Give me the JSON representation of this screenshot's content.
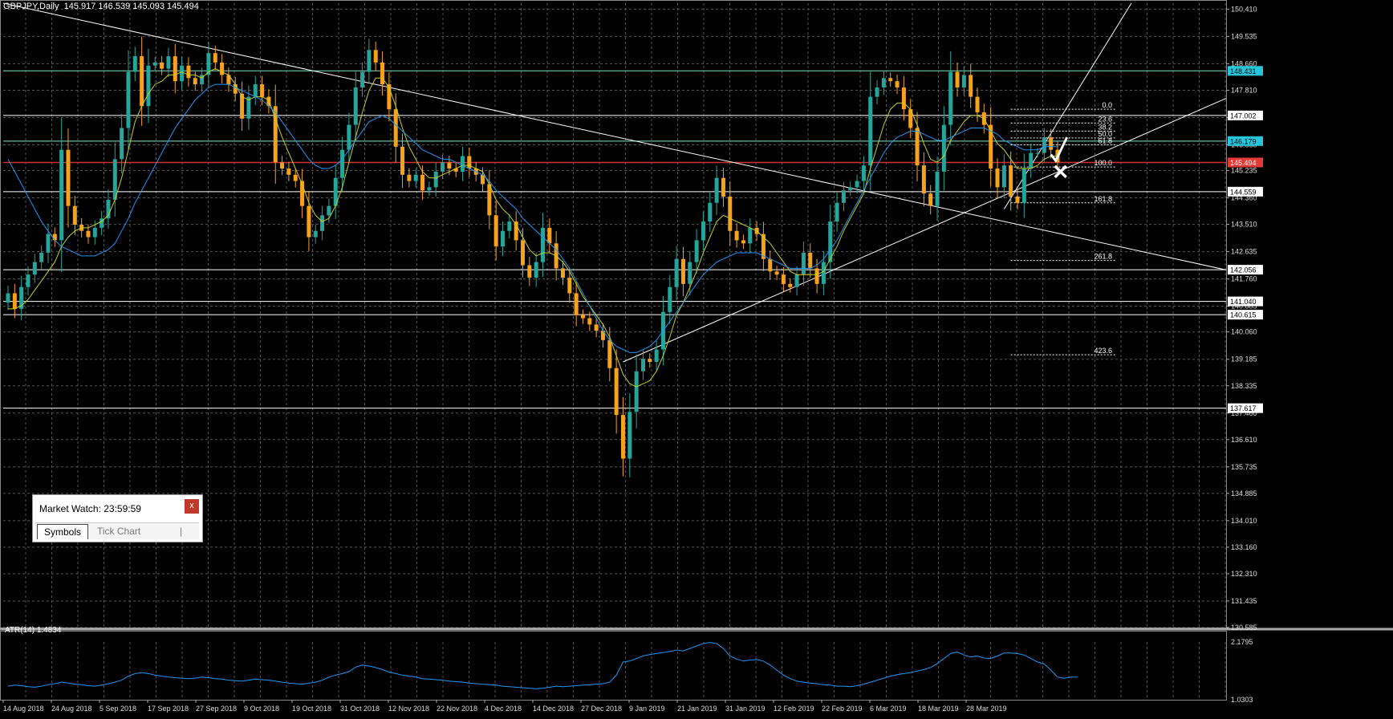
{
  "header": {
    "title": "GBPJPY,Daily  145.917 146.539 145.093 145.494"
  },
  "atr_header": {
    "label": "ATR(14) 1.4834"
  },
  "market_watch": {
    "title": "Market Watch: 23:59:59",
    "close_label": "x",
    "tabs": [
      {
        "label": "Symbols"
      },
      {
        "label": "Tick Chart"
      }
    ],
    "separator": "|"
  },
  "colors": {
    "background": "#000000",
    "bull_candle": "#26a69a",
    "bear_candle": "#f7a21b",
    "ma_fast": "#c8d020",
    "ma_slow": "#2196f3",
    "grid": "#555555",
    "resistance": "#7fe3c8",
    "support_line": "#ffffff",
    "current_price": "#d32f2f",
    "atr_line": "#2196f3"
  },
  "chart_data": {
    "type": "candlestick",
    "symbol": "GBPJPY",
    "timeframe": "Daily",
    "ylim": [
      130.585,
      150.6
    ],
    "y_ticks": [
      150.41,
      149.535,
      148.66,
      147.81,
      146.935,
      146.06,
      145.235,
      144.36,
      143.51,
      142.635,
      141.76,
      140.885,
      140.06,
      139.185,
      138.335,
      137.46,
      136.61,
      135.735,
      134.885,
      134.01,
      133.16,
      132.31,
      131.435,
      130.585
    ],
    "x_labels": [
      "14 Aug 2018",
      "24 Aug 2018",
      "5 Sep 2018",
      "17 Sep 2018",
      "27 Sep 2018",
      "9 Oct 2018",
      "19 Oct 2018",
      "31 Oct 2018",
      "12 Nov 2018",
      "22 Nov 2018",
      "4 Dec 2018",
      "14 Dec 2018",
      "27 Dec 2018",
      "9 Jan 2019",
      "21 Jan 2019",
      "31 Jan 2019",
      "12 Feb 2019",
      "22 Feb 2019",
      "6 Mar 2019",
      "18 Mar 2019",
      "28 Mar 2019"
    ],
    "price_levels": [
      {
        "value": 148.431,
        "label": "148.431",
        "style": "cyan-box"
      },
      {
        "value": 147.002,
        "label": "147.002",
        "style": "white-box"
      },
      {
        "value": 146.179,
        "label": "146.179",
        "style": "cyan-box"
      },
      {
        "value": 145.494,
        "label": "145.494",
        "style": "red-box"
      },
      {
        "value": 144.559,
        "label": "144.559",
        "style": "white-box"
      },
      {
        "value": 142.056,
        "label": "142.056",
        "style": "white-box"
      },
      {
        "value": 141.04,
        "label": "141.040",
        "style": "white-box"
      },
      {
        "value": 140.615,
        "label": "140.615",
        "style": "white-box"
      },
      {
        "value": 137.617,
        "label": "137.617",
        "style": "white-box"
      }
    ],
    "fib_levels": [
      {
        "label": "0.0",
        "value": 147.2
      },
      {
        "label": "23.6",
        "value": 146.76
      },
      {
        "label": "38.2",
        "value": 146.5
      },
      {
        "label": "50.0",
        "value": 146.28
      },
      {
        "label": "61.8",
        "value": 146.06
      },
      {
        "label": "100.0",
        "value": 145.35
      },
      {
        "label": "161.8",
        "value": 144.2
      },
      {
        "label": "261.8",
        "value": 142.35
      },
      {
        "label": "423.6",
        "value": 139.33
      }
    ],
    "closes": [
      141.3,
      140.8,
      141.5,
      141.9,
      142.3,
      142.6,
      143.2,
      143.0,
      145.9,
      144.1,
      143.5,
      143.3,
      143.1,
      143.4,
      143.7,
      144.3,
      145.6,
      146.6,
      148.4,
      148.9,
      147.3,
      148.6,
      148.7,
      148.5,
      148.9,
      148.1,
      148.6,
      148.2,
      148.0,
      148.3,
      149.0,
      148.7,
      148.3,
      148.0,
      147.7,
      146.9,
      147.6,
      148.0,
      147.6,
      147.3,
      145.5,
      145.3,
      145.1,
      144.9,
      144.1,
      143.1,
      143.3,
      143.8,
      144.1,
      145.0,
      145.9,
      146.7,
      147.9,
      148.4,
      149.1,
      148.7,
      148.0,
      147.2,
      146.0,
      145.1,
      144.9,
      145.1,
      144.6,
      144.7,
      145.2,
      145.5,
      145.3,
      145.2,
      145.7,
      145.3,
      145.1,
      144.8,
      143.8,
      142.8,
      143.3,
      143.6,
      143.0,
      142.2,
      141.8,
      142.3,
      143.4,
      142.9,
      142.1,
      141.8,
      141.3,
      140.6,
      140.5,
      140.3,
      140.1,
      139.8,
      138.9,
      137.4,
      136.0,
      137.5,
      138.8,
      139.2,
      139.1,
      139.5,
      140.7,
      141.5,
      142.4,
      141.6,
      142.3,
      143.0,
      143.6,
      144.2,
      145.0,
      144.4,
      143.3,
      143.0,
      142.9,
      143.4,
      143.2,
      142.4,
      142.0,
      141.9,
      141.6,
      141.5,
      141.9,
      142.6,
      142.1,
      141.6,
      142.3,
      143.6,
      144.2,
      144.6,
      144.7,
      144.9,
      145.4,
      147.6,
      147.9,
      148.2,
      148.1,
      147.9,
      147.2,
      146.6,
      145.4,
      144.5,
      144.1,
      145.2,
      146.7,
      148.4,
      147.9,
      148.3,
      147.6,
      147.1,
      146.7,
      145.3,
      144.7,
      145.4,
      144.4,
      144.2,
      145.3,
      145.8,
      145.8,
      146.3,
      145.9,
      145.5
    ],
    "ma_fast": [
      140.8,
      140.8,
      140.9,
      141.1,
      141.4,
      141.7,
      142.0,
      142.3,
      142.8,
      143.1,
      143.3,
      143.4,
      143.4,
      143.5,
      143.6,
      143.8,
      144.3,
      145.0,
      145.9,
      146.8,
      147.3,
      147.7,
      148.0,
      148.1,
      148.3,
      148.3,
      148.4,
      148.3,
      148.3,
      148.2,
      148.4,
      148.5,
      148.4,
      148.3,
      148.0,
      147.6,
      147.5,
      147.6,
      147.6,
      147.5,
      146.9,
      146.3,
      145.8,
      145.3,
      144.8,
      144.2,
      143.8,
      143.6,
      143.7,
      144.1,
      144.7,
      145.5,
      146.3,
      147.1,
      147.8,
      148.2,
      148.2,
      147.9,
      147.3,
      146.6,
      146.0,
      145.6,
      145.2,
      145.0,
      145.0,
      145.1,
      145.2,
      145.3,
      145.4,
      145.4,
      145.3,
      145.2,
      144.8,
      144.3,
      144.0,
      143.8,
      143.5,
      143.1,
      142.7,
      142.5,
      142.6,
      142.6,
      142.5,
      142.3,
      142.0,
      141.6,
      141.2,
      140.9,
      140.6,
      140.3,
      139.9,
      139.3,
      138.7,
      138.4,
      138.3,
      138.4,
      138.5,
      138.8,
      139.3,
      139.9,
      140.6,
      141.0,
      141.5,
      142.0,
      142.6,
      143.1,
      143.6,
      143.8,
      143.7,
      143.6,
      143.5,
      143.4,
      143.3,
      143.1,
      142.9,
      142.6,
      142.3,
      142.0,
      141.9,
      141.9,
      141.9,
      141.9,
      142.0,
      142.4,
      142.8,
      143.3,
      143.7,
      144.1,
      144.5,
      145.3,
      146.0,
      146.7,
      147.2,
      147.4,
      147.4,
      147.2,
      146.7,
      146.1,
      145.6,
      145.5,
      145.7,
      146.2,
      146.5,
      146.8,
      147.0,
      147.0,
      146.9,
      146.5,
      146.1,
      145.9,
      145.6,
      145.3,
      145.3,
      145.3,
      145.4,
      145.6,
      145.7,
      145.7
    ],
    "ma_slow": [
      145.6,
      145.2,
      144.8,
      144.4,
      144.0,
      143.6,
      143.3,
      143.0,
      142.8,
      142.7,
      142.6,
      142.5,
      142.5,
      142.5,
      142.6,
      142.7,
      142.9,
      143.3,
      143.7,
      144.2,
      144.6,
      145.0,
      145.4,
      145.8,
      146.2,
      146.6,
      146.9,
      147.2,
      147.5,
      147.7,
      147.9,
      148.0,
      148.0,
      148.0,
      147.9,
      147.8,
      147.7,
      147.6,
      147.5,
      147.3,
      147.1,
      146.8,
      146.5,
      146.2,
      145.9,
      145.6,
      145.4,
      145.3,
      145.3,
      145.4,
      145.6,
      145.9,
      146.2,
      146.5,
      146.8,
      146.9,
      147.0,
      146.9,
      146.7,
      146.5,
      146.3,
      146.1,
      145.9,
      145.8,
      145.7,
      145.6,
      145.6,
      145.5,
      145.4,
      145.3,
      145.2,
      145.1,
      144.9,
      144.6,
      144.4,
      144.2,
      144.0,
      143.7,
      143.5,
      143.3,
      143.1,
      142.9,
      142.7,
      142.4,
      142.1,
      141.7,
      141.3,
      140.9,
      140.5,
      140.1,
      139.8,
      139.6,
      139.5,
      139.4,
      139.4,
      139.5,
      139.6,
      139.8,
      140.1,
      140.4,
      140.7,
      141.0,
      141.3,
      141.6,
      141.9,
      142.1,
      142.3,
      142.4,
      142.5,
      142.6,
      142.6,
      142.6,
      142.6,
      142.5,
      142.4,
      142.3,
      142.2,
      142.1,
      142.1,
      142.1,
      142.1,
      142.2,
      142.4,
      142.7,
      143.0,
      143.4,
      143.8,
      144.2,
      144.6,
      145.0,
      145.4,
      145.8,
      146.1,
      146.3,
      146.4,
      146.5,
      146.5,
      146.4,
      146.3,
      146.2,
      146.2,
      146.3,
      146.4,
      146.5,
      146.6,
      146.6,
      146.6,
      146.5,
      146.4,
      146.2,
      146.1,
      146.0,
      145.9,
      145.9,
      145.9,
      146.0,
      146.0,
      146.0
    ],
    "atr": {
      "label": "ATR(14)",
      "value": 1.4834,
      "ylim": [
        1.0303,
        2.1795
      ],
      "y_ticks": [
        2.1795,
        1.0303
      ],
      "values": [
        1.3,
        1.32,
        1.31,
        1.29,
        1.28,
        1.3,
        1.33,
        1.35,
        1.38,
        1.36,
        1.34,
        1.33,
        1.31,
        1.3,
        1.32,
        1.35,
        1.38,
        1.42,
        1.5,
        1.55,
        1.57,
        1.55,
        1.52,
        1.5,
        1.48,
        1.47,
        1.46,
        1.45,
        1.46,
        1.48,
        1.47,
        1.45,
        1.44,
        1.42,
        1.41,
        1.4,
        1.42,
        1.44,
        1.43,
        1.42,
        1.4,
        1.38,
        1.36,
        1.35,
        1.34,
        1.36,
        1.38,
        1.42,
        1.48,
        1.52,
        1.55,
        1.59,
        1.68,
        1.72,
        1.7,
        1.67,
        1.63,
        1.58,
        1.55,
        1.52,
        1.5,
        1.48,
        1.45,
        1.44,
        1.43,
        1.42,
        1.4,
        1.39,
        1.38,
        1.36,
        1.35,
        1.34,
        1.33,
        1.32,
        1.3,
        1.29,
        1.28,
        1.27,
        1.26,
        1.25,
        1.26,
        1.28,
        1.3,
        1.29,
        1.3,
        1.31,
        1.32,
        1.33,
        1.34,
        1.35,
        1.38,
        1.52,
        1.78,
        1.8,
        1.85,
        1.9,
        1.93,
        1.95,
        1.97,
        1.99,
        2.02,
        2.0,
        2.05,
        2.1,
        2.15,
        2.17,
        2.15,
        2.05,
        1.9,
        1.84,
        1.8,
        1.82,
        1.83,
        1.8,
        1.72,
        1.62,
        1.52,
        1.45,
        1.4,
        1.38,
        1.36,
        1.35,
        1.33,
        1.32,
        1.3,
        1.3,
        1.29,
        1.31,
        1.34,
        1.38,
        1.42,
        1.46,
        1.5,
        1.53,
        1.55,
        1.57,
        1.6,
        1.63,
        1.67,
        1.75,
        1.85,
        1.95,
        1.98,
        1.92,
        1.88,
        1.9,
        1.86,
        1.85,
        1.9,
        1.96,
        1.96,
        1.95,
        1.92,
        1.85,
        1.78,
        1.74,
        1.62,
        1.48,
        1.46,
        1.48,
        1.48
      ]
    }
  }
}
